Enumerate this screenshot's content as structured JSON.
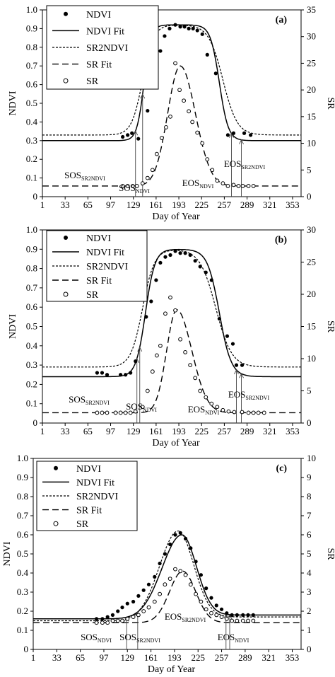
{
  "colors": {
    "ink": "#000000",
    "background": "#ffffff"
  },
  "chart_data": [
    {
      "type": "line",
      "panel_label": "(a)",
      "xlabel": "Day of Year",
      "ylabel": "NDVI",
      "y2label": "SR",
      "xlim": [
        1,
        365
      ],
      "ylim": [
        0,
        1.0
      ],
      "y2lim": [
        0,
        35
      ],
      "xticks": [
        1,
        33,
        65,
        97,
        129,
        161,
        193,
        225,
        257,
        289,
        321,
        353
      ],
      "yticks": [
        0,
        0.1,
        0.2,
        0.3,
        0.4,
        0.5,
        0.6,
        0.7,
        0.8,
        0.9,
        1.0
      ],
      "y2ticks": [
        0,
        5,
        10,
        15,
        20,
        25,
        30,
        35
      ],
      "legend_position": "top-left",
      "legend": [
        "NDVI",
        "NDVI Fit",
        "SR2NDVI",
        "SR Fit",
        "SR"
      ],
      "ndvi_points": {
        "x": [
          114,
          121,
          127,
          136,
          149,
          161,
          167,
          173,
          180,
          188,
          195,
          201,
          207,
          213,
          219,
          226,
          233,
          245,
          262,
          270,
          285,
          294
        ],
        "y": [
          0.32,
          0.33,
          0.34,
          0.31,
          0.46,
          0.62,
          0.78,
          0.86,
          0.9,
          0.92,
          0.91,
          0.91,
          0.9,
          0.9,
          0.89,
          0.87,
          0.76,
          0.66,
          0.33,
          0.34,
          0.34,
          0.33
        ]
      },
      "ndvi_fit": {
        "base": 0.3,
        "peak": 0.92,
        "sos": 144,
        "sos_k": 0.2,
        "eos": 250,
        "eos_k": 0.16
      },
      "sr2ndvi": {
        "base": 0.33,
        "peak": 0.92,
        "sos": 142,
        "sos_k": 0.13,
        "eos": 255,
        "eos_k": 0.1
      },
      "sr_fit": {
        "base": 2.0,
        "peak": 24.5,
        "center": 195,
        "width_left": 25,
        "width_right": 30
      },
      "sr_points": {
        "x": [
          114,
          121,
          128,
          134,
          142,
          149,
          156,
          162,
          169,
          175,
          181,
          188,
          194,
          200,
          207,
          212,
          219,
          226,
          233,
          240,
          247,
          255,
          262,
          270,
          277,
          283,
          291,
          298
        ],
        "y": [
          2,
          2,
          2,
          2,
          2.5,
          3.5,
          5,
          8,
          11,
          13,
          15,
          25,
          20,
          18,
          16,
          14,
          12,
          10,
          7,
          5,
          3,
          2.5,
          2,
          2.2,
          2,
          2,
          2,
          2
        ]
      },
      "phenology_lines": [
        {
          "x": 132,
          "from": "sr",
          "to": "ndvi"
        },
        {
          "x": 142,
          "from": "sr",
          "to": "ndvi"
        },
        {
          "x": 267,
          "from": "sr",
          "to": "ndvi"
        },
        {
          "x": 281,
          "from": "sr",
          "to": "ndvi"
        }
      ],
      "annotations": [
        {
          "main": "SOS",
          "sub": "SR2NDVI"
        },
        {
          "main": "SOS",
          "sub": "NDVI"
        },
        {
          "main": "EOS",
          "sub": "NDVI"
        },
        {
          "main": "EOS",
          "sub": "SR2NDVI"
        }
      ]
    },
    {
      "type": "line",
      "panel_label": "(b)",
      "xlabel": "Day of Year",
      "ylabel": "NDVI",
      "y2label": "SR",
      "xlim": [
        1,
        365
      ],
      "ylim": [
        0,
        1.0
      ],
      "y2lim": [
        0,
        30
      ],
      "xticks": [
        1,
        33,
        65,
        97,
        129,
        161,
        193,
        225,
        257,
        289,
        321,
        353
      ],
      "yticks": [
        0,
        0.1,
        0.2,
        0.3,
        0.4,
        0.5,
        0.6,
        0.7,
        0.8,
        0.9,
        1.0
      ],
      "y2ticks": [
        0,
        5,
        10,
        15,
        20,
        25,
        30
      ],
      "legend_position": "top-left",
      "legend": [
        "NDVI",
        "NDVI Fit",
        "SR2NDVI",
        "SR Fit",
        "SR"
      ],
      "ndvi_points": {
        "x": [
          78,
          85,
          92,
          111,
          118,
          125,
          132,
          147,
          154,
          161,
          167,
          174,
          181,
          188,
          195,
          202,
          209,
          216,
          223,
          231,
          239,
          250,
          261,
          269,
          274,
          282
        ],
        "y": [
          0.26,
          0.26,
          0.25,
          0.25,
          0.25,
          0.26,
          0.32,
          0.55,
          0.63,
          0.74,
          0.83,
          0.86,
          0.87,
          0.89,
          0.88,
          0.88,
          0.87,
          0.84,
          0.81,
          0.78,
          0.74,
          0.54,
          0.45,
          0.41,
          0.3,
          0.3
        ]
      },
      "ndvi_fit": {
        "base": 0.24,
        "peak": 0.9,
        "sos": 146,
        "sos_k": 0.15,
        "eos": 250,
        "eos_k": 0.12
      },
      "sr2ndvi": {
        "base": 0.29,
        "peak": 0.9,
        "sos": 142,
        "sos_k": 0.12,
        "eos": 245,
        "eos_k": 0.09
      },
      "sr_fit": {
        "base": 1.6,
        "peak": 17.6,
        "center": 190,
        "width_left": 20,
        "width_right": 30
      },
      "sr_points": {
        "x": [
          78,
          85,
          92,
          104,
          111,
          118,
          125,
          132,
          142,
          149,
          156,
          162,
          167,
          174,
          181,
          188,
          195,
          202,
          209,
          216,
          223,
          231,
          239,
          247,
          255,
          263,
          271,
          282,
          291,
          298,
          305,
          313
        ],
        "y": [
          1.6,
          1.6,
          1.6,
          1.6,
          1.6,
          1.6,
          1.6,
          1.8,
          2.5,
          5,
          8,
          10.5,
          12,
          17,
          19.5,
          17.5,
          13,
          11,
          9,
          7,
          5,
          4,
          3,
          2.5,
          2,
          1.8,
          1.7,
          1.7,
          1.6,
          1.6,
          1.6,
          1.6
        ]
      },
      "phenology_lines": [
        {
          "x": 134,
          "from": "sr",
          "to": "ndvi"
        },
        {
          "x": 138,
          "from": "sr",
          "to": "ndvi"
        },
        {
          "x": 274,
          "from": "sr",
          "to": "ndvi"
        },
        {
          "x": 281,
          "from": "sr",
          "to": "ndvi"
        }
      ],
      "annotations": [
        {
          "main": "SOS",
          "sub": "SR2NDVI"
        },
        {
          "main": "SOS",
          "sub": "NDVI"
        },
        {
          "main": "EOS",
          "sub": "NDVI"
        },
        {
          "main": "EOS",
          "sub": "SR2NDVI"
        }
      ]
    },
    {
      "type": "line",
      "panel_label": "(c)",
      "xlabel": "Day of Year",
      "ylabel": "NDVI",
      "y2label": "SR",
      "xlim": [
        1,
        365
      ],
      "ylim": [
        0,
        1.0
      ],
      "y2lim": [
        0,
        10
      ],
      "xticks": [
        1,
        33,
        65,
        97,
        129,
        161,
        193,
        225,
        257,
        289,
        321,
        353
      ],
      "yticks": [
        0,
        0.1,
        0.2,
        0.3,
        0.4,
        0.5,
        0.6,
        0.7,
        0.8,
        0.9,
        1.0
      ],
      "y2ticks": [
        0,
        1,
        2,
        3,
        4,
        5,
        6,
        7,
        8,
        9,
        10
      ],
      "legend_position": "top-left",
      "legend": [
        "NDVI",
        "NDVI Fit",
        "SR2NDVI",
        "SR Fit",
        "SR"
      ],
      "ndvi_points": {
        "x": [
          87,
          95,
          102,
          109,
          116,
          122,
          129,
          137,
          144,
          151,
          158,
          166,
          173,
          180,
          187,
          194,
          201,
          208,
          215,
          222,
          229,
          236,
          243,
          250,
          257,
          264,
          271,
          278,
          286,
          293,
          300
        ],
        "y": [
          0.16,
          0.16,
          0.17,
          0.18,
          0.2,
          0.22,
          0.24,
          0.25,
          0.28,
          0.31,
          0.34,
          0.38,
          0.45,
          0.5,
          0.55,
          0.6,
          0.61,
          0.58,
          0.53,
          0.46,
          0.39,
          0.32,
          0.27,
          0.23,
          0.21,
          0.19,
          0.18,
          0.18,
          0.18,
          0.18,
          0.18
        ]
      },
      "ndvi_fit": {
        "base": 0.16,
        "peak": 0.6,
        "center": 203,
        "width_left": 38,
        "width_right": 28,
        "base_right": 0.18
      },
      "sr2ndvi": {
        "base": 0.15,
        "peak": 0.62,
        "center": 198,
        "width_left": 36,
        "width_right": 30,
        "base_right": 0.17
      },
      "sr_fit": {
        "base": 1.4,
        "peak": 4.1,
        "center": 204,
        "width_left": 25,
        "width_right": 25
      },
      "sr_points": {
        "x": [
          87,
          95,
          102,
          109,
          116,
          122,
          129,
          137,
          144,
          151,
          158,
          166,
          173,
          180,
          187,
          194,
          201,
          208,
          215,
          222,
          229,
          236,
          243,
          250,
          257,
          264,
          271,
          278,
          286,
          293,
          300
        ],
        "y": [
          1.4,
          1.4,
          1.4,
          1.5,
          1.5,
          1.5,
          1.6,
          1.7,
          1.8,
          2.0,
          2.2,
          2.5,
          2.9,
          3.4,
          3.7,
          4.2,
          4.1,
          3.9,
          3.4,
          2.9,
          2.5,
          2.1,
          1.9,
          1.8,
          1.7,
          1.6,
          1.5,
          1.5,
          1.5,
          1.5,
          1.5
        ]
      },
      "phenology_lines": [
        {
          "x": 128,
          "from": "sr",
          "to": "ndvi"
        },
        {
          "x": 143,
          "from": "sr",
          "to": "ndvi"
        },
        {
          "x": 263,
          "from": "sr",
          "to": "ndvi"
        },
        {
          "x": 268,
          "from": "sr",
          "to": "ndvi"
        }
      ],
      "annotations": [
        {
          "main": "SOS",
          "sub": "NDVI"
        },
        {
          "main": "SOS",
          "sub": "SR2NDVI"
        },
        {
          "main": "EOS",
          "sub": "SR2NDVI"
        },
        {
          "main": "EOS",
          "sub": "NDVI"
        }
      ]
    }
  ]
}
